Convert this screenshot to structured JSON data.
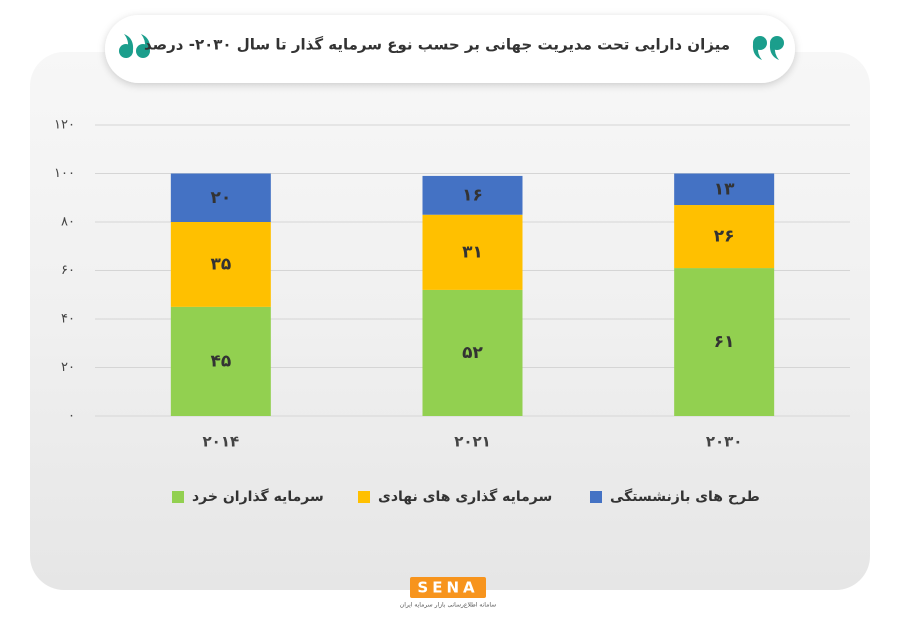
{
  "chart_data": {
    "type": "stacked_bar",
    "title": "میزان دارایی تحت مدیریت جهانی بر حسب نوع سرمایه گذار تا سال ۲۰۳۰- درصد",
    "categories": [
      "۲۰۱۴",
      "۲۰۲۱",
      "۲۰۳۰"
    ],
    "series": [
      {
        "name": "سرمایه گذاران خرد",
        "color": "#92d050",
        "values": [
          45,
          52,
          61
        ],
        "value_labels": [
          "۴۵",
          "۵۲",
          "۶۱"
        ]
      },
      {
        "name": "سرمایه گذاری های نهادی",
        "color": "#ffc000",
        "values": [
          35,
          31,
          26
        ],
        "value_labels": [
          "۳۵",
          "۳۱",
          "۲۶"
        ]
      },
      {
        "name": "طرح های بازنشستگی",
        "color": "#4472c4",
        "values": [
          20,
          16,
          13
        ],
        "value_labels": [
          "۲۰",
          "۱۶",
          "۱۳"
        ]
      }
    ],
    "ylim": [
      0,
      120
    ],
    "yticks": [
      {
        "value": 0,
        "label": "۰"
      },
      {
        "value": 20,
        "label": "۲۰"
      },
      {
        "value": 40,
        "label": "۴۰"
      },
      {
        "value": 60,
        "label": "۶۰"
      },
      {
        "value": 80,
        "label": "۸۰"
      },
      {
        "value": 100,
        "label": "۱۰۰"
      },
      {
        "value": 120,
        "label": "۱۲۰"
      }
    ],
    "grid": true,
    "legend": "bottom"
  },
  "logo": {
    "name": "SENA",
    "caption": "سامانه اطلاع‌رسانی بازار سرمایه ایران"
  }
}
